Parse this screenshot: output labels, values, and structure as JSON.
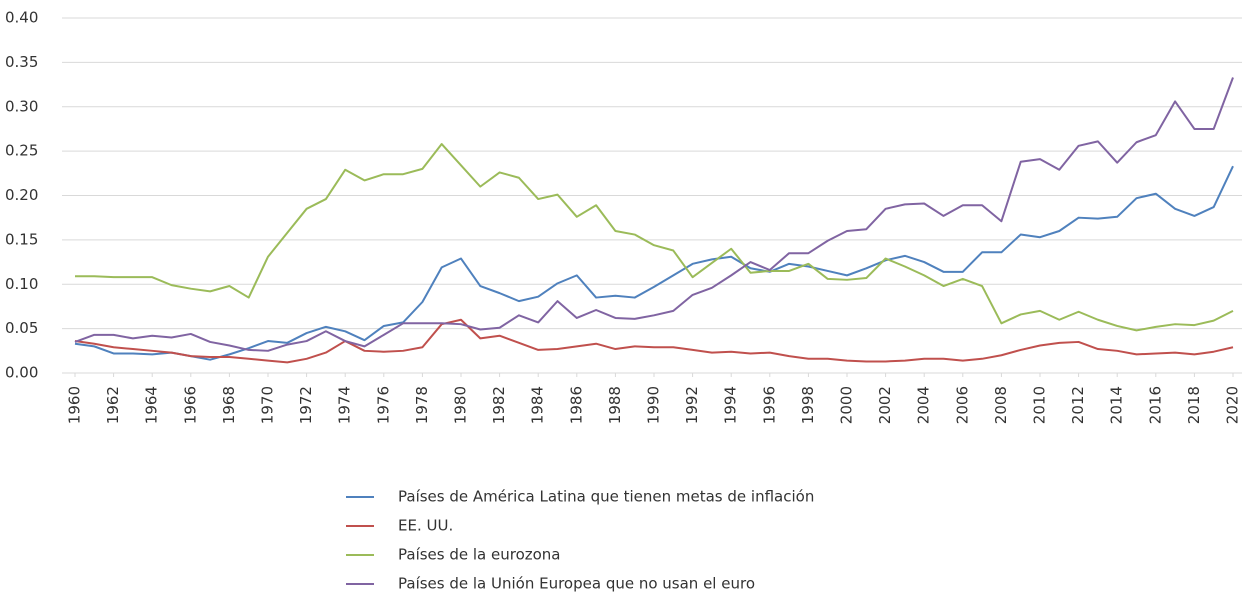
{
  "chart_data": {
    "type": "line",
    "x": [
      1960,
      1961,
      1962,
      1963,
      1964,
      1965,
      1966,
      1967,
      1968,
      1969,
      1970,
      1971,
      1972,
      1973,
      1974,
      1975,
      1976,
      1977,
      1978,
      1979,
      1980,
      1981,
      1982,
      1983,
      1984,
      1985,
      1986,
      1987,
      1988,
      1989,
      1990,
      1991,
      1992,
      1993,
      1994,
      1995,
      1996,
      1997,
      1998,
      1999,
      2000,
      2001,
      2002,
      2003,
      2004,
      2005,
      2006,
      2007,
      2008,
      2009,
      2010,
      2011,
      2012,
      2013,
      2014,
      2015,
      2016,
      2017,
      2018,
      2019,
      2020
    ],
    "xlim": [
      1960,
      2020
    ],
    "xticks": [
      1960,
      1962,
      1964,
      1966,
      1968,
      1970,
      1972,
      1974,
      1976,
      1978,
      1980,
      1982,
      1984,
      1986,
      1988,
      1990,
      1992,
      1994,
      1996,
      1998,
      2000,
      2002,
      2004,
      2006,
      2008,
      2010,
      2012,
      2014,
      2016,
      2018,
      2020
    ],
    "ylim": [
      0,
      0.4
    ],
    "yticks": [
      {
        "value": 0,
        "label": "0.00"
      },
      {
        "value": 0.05,
        "label": "0.05"
      },
      {
        "value": 0.1,
        "label": "0.10"
      },
      {
        "value": 0.15,
        "label": "0.15"
      },
      {
        "value": 0.2,
        "label": "0.20"
      },
      {
        "value": 0.25,
        "label": "0.25"
      },
      {
        "value": 0.3,
        "label": "0.30"
      },
      {
        "value": 0.35,
        "label": "0.35"
      },
      {
        "value": 0.4,
        "label": "0.40"
      }
    ],
    "grid": true,
    "legend": "bottom",
    "series": [
      {
        "name": "Países de América Latina que tienen metas de inflación",
        "color": "#4f81bd",
        "values": [
          0.033,
          0.03,
          0.022,
          0.022,
          0.021,
          0.023,
          0.019,
          0.015,
          0.021,
          0.028,
          0.036,
          0.034,
          0.045,
          0.052,
          0.047,
          0.037,
          0.053,
          0.057,
          0.08,
          0.119,
          0.129,
          0.098,
          0.09,
          0.081,
          0.086,
          0.101,
          0.11,
          0.085,
          0.087,
          0.085,
          0.097,
          0.11,
          0.123,
          0.128,
          0.131,
          0.118,
          0.114,
          0.123,
          0.12,
          0.115,
          0.11,
          0.118,
          0.127,
          0.132,
          0.125,
          0.114,
          0.114,
          0.136,
          0.136,
          0.156,
          0.153,
          0.16,
          0.175,
          0.174,
          0.176,
          0.197,
          0.202,
          0.185,
          0.177,
          0.187,
          0.233
        ]
      },
      {
        "name": "EE. UU.",
        "color": "#c0504d",
        "values": [
          0.036,
          0.033,
          0.029,
          0.027,
          0.025,
          0.023,
          0.019,
          0.018,
          0.018,
          0.016,
          0.014,
          0.012,
          0.016,
          0.023,
          0.036,
          0.025,
          0.024,
          0.025,
          0.029,
          0.055,
          0.06,
          0.039,
          0.042,
          0.034,
          0.026,
          0.027,
          0.03,
          0.033,
          0.027,
          0.03,
          0.029,
          0.029,
          0.026,
          0.023,
          0.024,
          0.022,
          0.023,
          0.019,
          0.016,
          0.016,
          0.014,
          0.013,
          0.013,
          0.014,
          0.016,
          0.016,
          0.014,
          0.016,
          0.02,
          0.026,
          0.031,
          0.034,
          0.035,
          0.027,
          0.025,
          0.021,
          0.022,
          0.023,
          0.021,
          0.024,
          0.029
        ]
      },
      {
        "name": "Países de la eurozona",
        "color": "#9bbb59",
        "values": [
          0.109,
          0.109,
          0.108,
          0.108,
          0.108,
          0.099,
          0.095,
          0.092,
          0.098,
          0.085,
          0.131,
          0.158,
          0.185,
          0.196,
          0.229,
          0.217,
          0.224,
          0.224,
          0.23,
          0.258,
          0.234,
          0.21,
          0.226,
          0.22,
          0.196,
          0.201,
          0.176,
          0.189,
          0.16,
          0.156,
          0.144,
          0.138,
          0.108,
          0.124,
          0.14,
          0.113,
          0.115,
          0.115,
          0.123,
          0.106,
          0.105,
          0.107,
          0.129,
          0.12,
          0.11,
          0.098,
          0.106,
          0.098,
          0.056,
          0.066,
          0.07,
          0.06,
          0.069,
          0.06,
          0.053,
          0.048,
          0.052,
          0.055,
          0.054,
          0.059,
          0.07
        ]
      },
      {
        "name": "Países de la Unión Europea que no usan el euro",
        "color": "#8064a2",
        "values": [
          0.035,
          0.043,
          0.043,
          0.039,
          0.042,
          0.04,
          0.044,
          0.035,
          0.031,
          0.026,
          0.025,
          0.032,
          0.036,
          0.047,
          0.036,
          0.03,
          0.043,
          0.056,
          0.056,
          0.056,
          0.055,
          0.049,
          0.051,
          0.065,
          0.057,
          0.081,
          0.062,
          0.071,
          0.062,
          0.061,
          0.065,
          0.07,
          0.088,
          0.096,
          0.11,
          0.125,
          0.116,
          0.135,
          0.135,
          0.149,
          0.16,
          0.162,
          0.185,
          0.19,
          0.191,
          0.177,
          0.189,
          0.189,
          0.171,
          0.238,
          0.241,
          0.229,
          0.256,
          0.261,
          0.237,
          0.26,
          0.268,
          0.306,
          0.275,
          0.275,
          0.333
        ]
      }
    ]
  }
}
